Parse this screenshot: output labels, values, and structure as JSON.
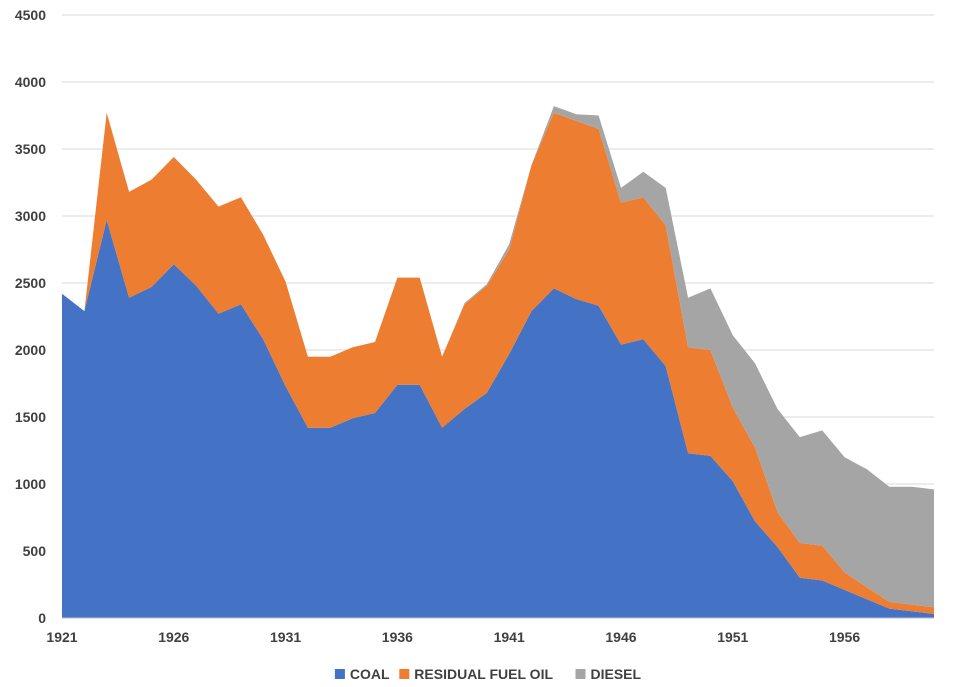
{
  "chart_data": {
    "type": "area",
    "stacked": true,
    "x": [
      1921,
      1922,
      1923,
      1924,
      1925,
      1926,
      1927,
      1928,
      1929,
      1930,
      1931,
      1932,
      1933,
      1934,
      1935,
      1936,
      1937,
      1938,
      1939,
      1940,
      1941,
      1942,
      1943,
      1944,
      1945,
      1946,
      1947,
      1948,
      1949,
      1950,
      1951,
      1952,
      1953,
      1954,
      1955,
      1956,
      1957,
      1958,
      1959,
      1960
    ],
    "xticks": [
      1921,
      1926,
      1931,
      1936,
      1941,
      1946,
      1951,
      1956
    ],
    "yticks": [
      0,
      500,
      1000,
      1500,
      2000,
      2500,
      3000,
      3500,
      4000,
      4500
    ],
    "ylim": [
      0,
      4500
    ],
    "xlim": [
      1921,
      1960
    ],
    "grid": true,
    "legend_position": "bottom",
    "title": "",
    "xlabel": "",
    "ylabel": "",
    "series": [
      {
        "name": "COAL",
        "color": "#4472C4",
        "values": [
          2420,
          2290,
          2970,
          2390,
          2470,
          2640,
          2480,
          2270,
          2340,
          2080,
          1730,
          1420,
          1420,
          1490,
          1530,
          1740,
          1740,
          1420,
          1560,
          1680,
          1970,
          2290,
          2460,
          2380,
          2330,
          2040,
          2080,
          1880,
          1230,
          1210,
          1020,
          720,
          530,
          300,
          280,
          210,
          140,
          70,
          50,
          30
        ]
      },
      {
        "name": "RESIDUAL FUEL OIL",
        "color": "#ED7D31",
        "values": [
          0,
          0,
          800,
          790,
          800,
          800,
          790,
          800,
          800,
          780,
          780,
          530,
          530,
          530,
          530,
          800,
          800,
          530,
          780,
          800,
          780,
          1090,
          1310,
          1330,
          1320,
          1060,
          1060,
          1050,
          790,
          790,
          550,
          550,
          260,
          260,
          260,
          130,
          90,
          50,
          50,
          50
        ]
      },
      {
        "name": "DIESEL",
        "color": "#A5A5A5",
        "values": [
          0,
          0,
          0,
          0,
          0,
          0,
          0,
          0,
          0,
          0,
          0,
          0,
          0,
          0,
          0,
          0,
          0,
          0,
          10,
          10,
          40,
          0,
          50,
          50,
          100,
          110,
          190,
          280,
          370,
          460,
          540,
          630,
          770,
          790,
          860,
          860,
          880,
          860,
          880,
          880
        ]
      }
    ]
  }
}
